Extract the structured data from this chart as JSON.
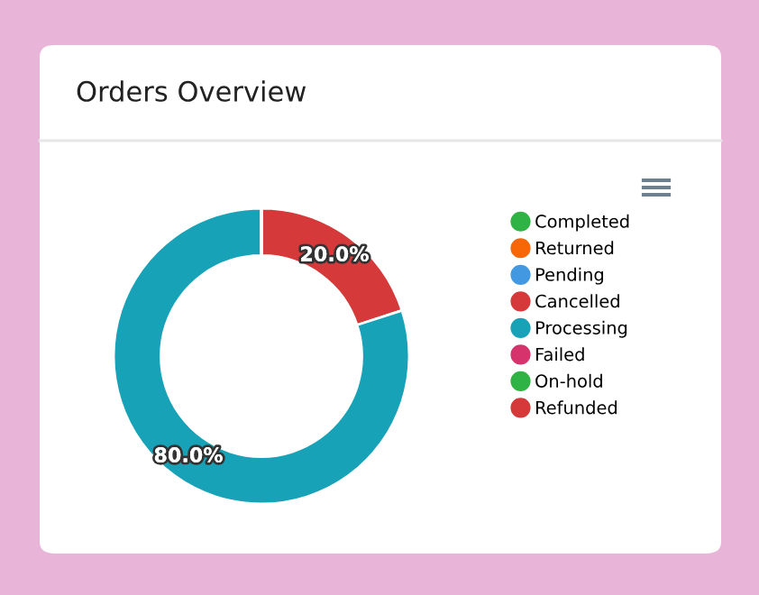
{
  "chart_data": {
    "type": "donut",
    "title": "Orders Overview",
    "categories": [
      "Completed",
      "Returned",
      "Pending",
      "Cancelled",
      "Processing",
      "Failed",
      "On-hold",
      "Refunded"
    ],
    "values": [
      0,
      0,
      0,
      20,
      80,
      0,
      0,
      0
    ],
    "colors": [
      "#2fb344",
      "#f76707",
      "#4299e1",
      "#d63939",
      "#17a2b8",
      "#d6336c",
      "#2fb344",
      "#d63939"
    ],
    "value_labels": [
      null,
      null,
      null,
      "20.0%",
      "80.0%",
      null,
      null,
      null
    ],
    "legend": "right"
  }
}
